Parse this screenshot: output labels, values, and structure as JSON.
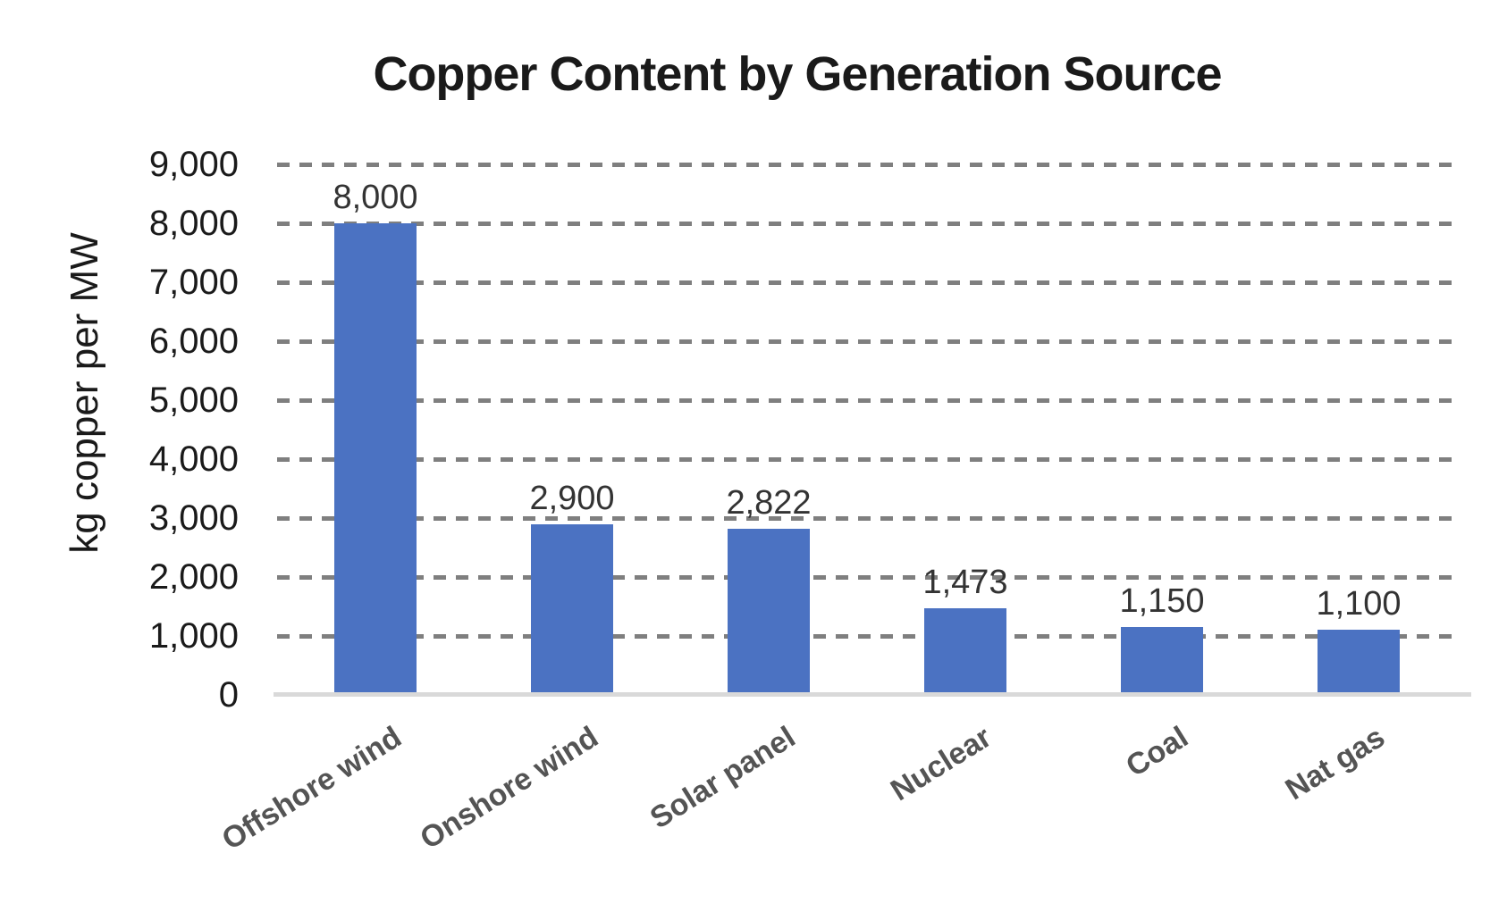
{
  "chart_data": {
    "type": "bar",
    "title": "Copper Content by Generation Source",
    "xlabel": "",
    "ylabel": "kg copper per MW",
    "categories": [
      "Offshore wind",
      "Onshore wind",
      "Solar panel",
      "Nuclear",
      "Coal",
      "Nat gas"
    ],
    "values": [
      8000,
      2900,
      2822,
      1473,
      1150,
      1100
    ],
    "data_labels": [
      "8,000",
      "2,900",
      "2,822",
      "1,473",
      "1,150",
      "1,100"
    ],
    "series_name": "kg copper per MW",
    "ylim": [
      0,
      9000
    ],
    "ytick_step": 1000,
    "ytick_labels": [
      "0",
      "1,000",
      "2,000",
      "3,000",
      "4,000",
      "5,000",
      "6,000",
      "7,000",
      "8,000",
      "9,000"
    ],
    "grid": "horizontal-dashed",
    "legend": "none",
    "colors": {
      "bar": "#4b72c2",
      "gridline": "#7f7f7f",
      "axis_line": "#d9d9d9",
      "title_text": "#1a1a1a",
      "tick_text": "#1a1a1a",
      "data_label_text": "#333333",
      "category_text": "#545454"
    }
  }
}
